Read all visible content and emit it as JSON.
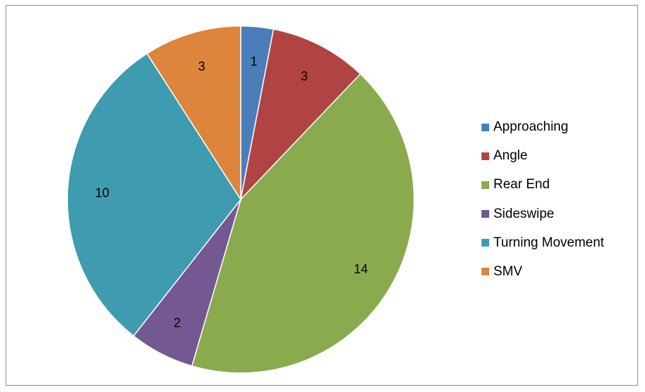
{
  "chart_data": {
    "type": "pie",
    "categories": [
      "Approaching",
      "Angle",
      "Rear End",
      "Sideswipe",
      "Turning Movement",
      "SMV"
    ],
    "values": [
      1,
      3,
      14,
      2,
      10,
      3
    ],
    "colors": [
      "#4a7ebb",
      "#b04442",
      "#8aaa4e",
      "#735891",
      "#3e9bb0",
      "#dd853c"
    ],
    "data_labels": [
      "1",
      "3",
      "14",
      "2",
      "10",
      "3"
    ],
    "start_angle_deg": 0,
    "direction": "clockwise",
    "legend_position": "right"
  }
}
